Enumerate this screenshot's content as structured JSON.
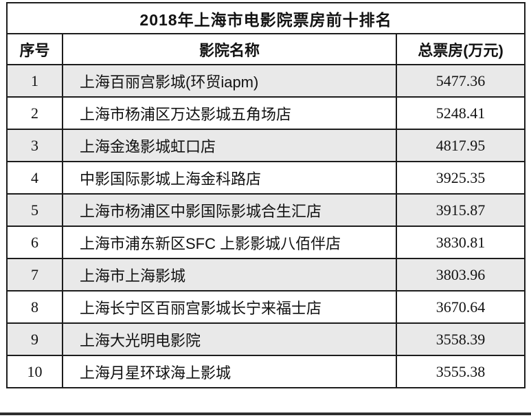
{
  "table": {
    "title": "2018年上海市电影院票房前十排名",
    "columns": {
      "rank": "序号",
      "name": "影院名称",
      "boxoffice": "总票房(万元)"
    },
    "rows": [
      {
        "rank": "1",
        "name": "上海百丽宫影城(环贸iapm)",
        "value": "5477.36"
      },
      {
        "rank": "2",
        "name": "上海市杨浦区万达影城五角场店",
        "value": "5248.41"
      },
      {
        "rank": "3",
        "name": "上海金逸影城虹口店",
        "value": "4817.95"
      },
      {
        "rank": "4",
        "name": "中影国际影城上海金科路店",
        "value": "3925.35"
      },
      {
        "rank": "5",
        "name": "上海市杨浦区中影国际影城合生汇店",
        "value": "3915.87"
      },
      {
        "rank": "6",
        "name": "上海市浦东新区SFC 上影影城八佰伴店",
        "value": "3830.81"
      },
      {
        "rank": "7",
        "name": "上海市上海影城",
        "value": "3803.96"
      },
      {
        "rank": "8",
        "name": "上海长宁区百丽宫影城长宁来福士店",
        "value": "3670.64"
      },
      {
        "rank": "9",
        "name": "上海大光明电影院",
        "value": "3558.39"
      },
      {
        "rank": "10",
        "name": "上海月星环球海上影城",
        "value": "3555.38"
      }
    ],
    "colors": {
      "stripe": "#e9e9e9",
      "border": "#1c1c1c",
      "text": "#121212",
      "background": "#ffffff"
    }
  }
}
